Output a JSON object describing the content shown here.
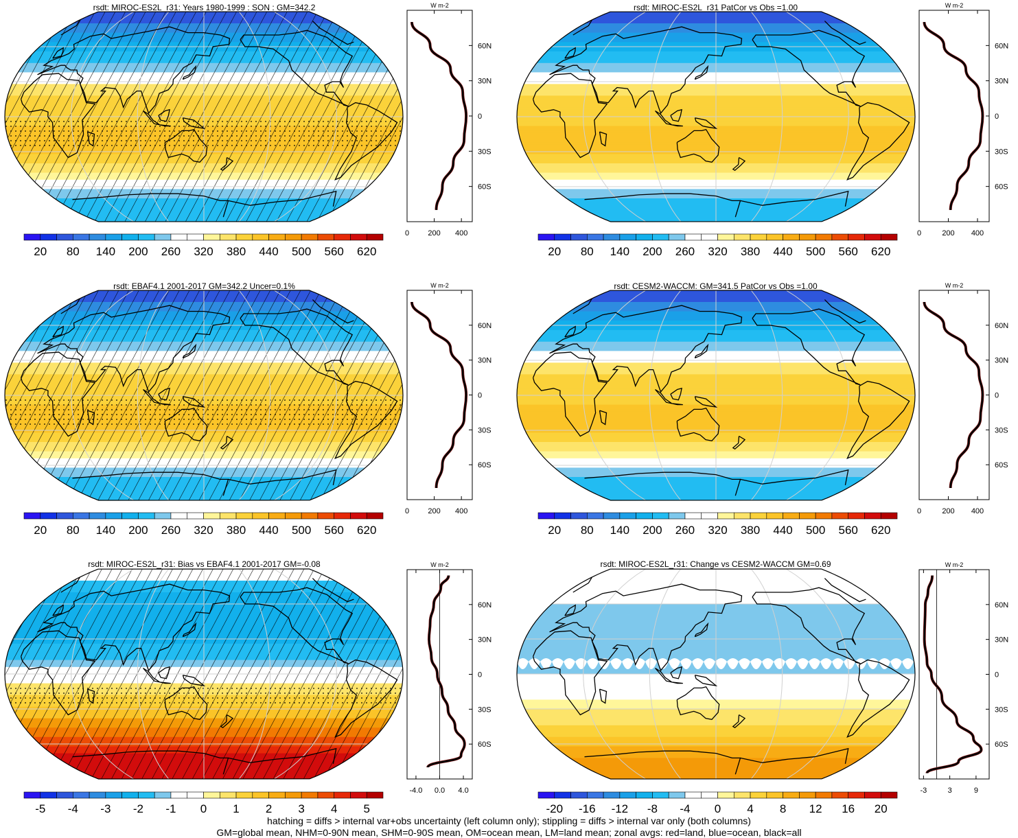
{
  "page": {
    "footer_line1": "hatching = diffs > internal var+obs uncertainty (left column only); stippling = diffs > internal var only (both columns)",
    "footer_line2": "GM=global mean, NHM=0-90N mean, SHM=0-90S mean, OM=ocean mean, LM=land mean; zonal avgs: red=land, blue=ocean, black=all"
  },
  "colors": {
    "scale": [
      "#2a14f2",
      "#1232e6",
      "#2e56dc",
      "#3a76e4",
      "#2e8ce0",
      "#1aa0e8",
      "#12b0ec",
      "#22bcf2",
      "#7ec8ec",
      "#ffffff",
      "#ffffff",
      "#fff69a",
      "#fde46a",
      "#fbd23a",
      "#fbc428",
      "#f8ac14",
      "#f49a08",
      "#f27a02",
      "#ec4c04",
      "#e62808",
      "#d20c0c",
      "#b40000"
    ],
    "land_outline": "#000000",
    "grid": "#d0d0d0",
    "zonal_line": "#000000"
  },
  "chart_data": [
    {
      "id": "p1",
      "type": "heatmap",
      "title": "rsdt: MIROC-ES2L_r31: Years 1980-1999 : SON : GM=342.2",
      "colorbar_labels": [
        "20",
        "80",
        "140",
        "200",
        "260",
        "320",
        "380",
        "440",
        "500",
        "560",
        "620"
      ],
      "zonal_unit": "W m-2",
      "zonal_ticks": [
        "0",
        "200",
        "400"
      ],
      "lat_ticks": [
        "60N",
        "30N",
        "0",
        "30S",
        "60S"
      ],
      "zonal_profile": {
        "lat": [
          80,
          60,
          40,
          20,
          0,
          -20,
          -40,
          -60,
          -80
        ],
        "value": [
          35,
          170,
          320,
          410,
          435,
          420,
          340,
          260,
          215
        ],
        "xlim": [
          0,
          480
        ]
      },
      "hatching": true,
      "stippling": "tropics"
    },
    {
      "id": "p2",
      "type": "heatmap",
      "title": "rsdt: MIROC-ES2L_r31 PatCor vs Obs =1.00",
      "colorbar_labels": [
        "20",
        "80",
        "140",
        "200",
        "260",
        "320",
        "380",
        "440",
        "500",
        "560",
        "620"
      ],
      "zonal_unit": "W m-2",
      "zonal_ticks": [
        "0",
        "200",
        "400"
      ],
      "lat_ticks": [
        "60N",
        "30N",
        "0",
        "30S",
        "60S"
      ],
      "zonal_profile": {
        "lat": [
          80,
          60,
          40,
          20,
          0,
          -20,
          -40,
          -60,
          -80
        ],
        "value": [
          35,
          170,
          320,
          410,
          435,
          420,
          340,
          260,
          215
        ],
        "xlim": [
          0,
          480
        ]
      },
      "hatching": false
    },
    {
      "id": "p3",
      "type": "heatmap",
      "title": "rsdt: EBAF4.1 2001-2017 GM=342.2 Uncer=0.1%",
      "colorbar_labels": [
        "20",
        "80",
        "140",
        "200",
        "260",
        "320",
        "380",
        "440",
        "500",
        "560",
        "620"
      ],
      "zonal_unit": "W m-2",
      "zonal_ticks": [
        "0",
        "200",
        "400"
      ],
      "lat_ticks": [
        "60N",
        "30N",
        "0",
        "30S",
        "60S"
      ],
      "zonal_profile": {
        "lat": [
          80,
          60,
          40,
          20,
          0,
          -20,
          -40,
          -60,
          -80
        ],
        "value": [
          35,
          170,
          320,
          410,
          435,
          420,
          340,
          260,
          215
        ],
        "xlim": [
          0,
          480
        ]
      },
      "hatching": true,
      "stippling": "tropics"
    },
    {
      "id": "p4",
      "type": "heatmap",
      "title": "rsdt: CESM2-WACCM: GM=341.5 PatCor vs Obs =1.00",
      "colorbar_labels": [
        "20",
        "80",
        "140",
        "200",
        "260",
        "320",
        "380",
        "440",
        "500",
        "560",
        "620"
      ],
      "zonal_unit": "W m-2",
      "zonal_ticks": [
        "0",
        "200",
        "400"
      ],
      "lat_ticks": [
        "60N",
        "30N",
        "0",
        "30S",
        "60S"
      ],
      "zonal_profile": {
        "lat": [
          80,
          60,
          40,
          20,
          0,
          -20,
          -40,
          -60,
          -80
        ],
        "value": [
          35,
          170,
          320,
          410,
          435,
          420,
          340,
          260,
          215
        ],
        "xlim": [
          0,
          480
        ]
      },
      "hatching": false
    },
    {
      "id": "p5",
      "type": "heatmap",
      "title": "rsdt: MIROC-ES2L_r31: Bias vs EBAF4.1 2001-2017  GM=-0.08",
      "colorbar_labels": [
        "-5",
        "-4",
        "-3",
        "-2",
        "-1",
        "0",
        "1",
        "2",
        "3",
        "4",
        "5"
      ],
      "zonal_unit": "W m-2",
      "zonal_ticks": [
        "-4.0",
        "0.0",
        "4.0"
      ],
      "lat_ticks": [
        "60N",
        "30N",
        "0",
        "30S",
        "60S"
      ],
      "zonal_profile": {
        "lat": [
          85,
          75,
          60,
          45,
          30,
          15,
          0,
          -15,
          -30,
          -45,
          -60,
          -70,
          -80
        ],
        "value": [
          1.5,
          0.2,
          -1.0,
          -1.6,
          -1.8,
          -1.4,
          -0.4,
          0.4,
          1.4,
          2.6,
          4.2,
          3.6,
          -2.0
        ],
        "xlim": [
          -5.5,
          5.5
        ],
        "zero_line": 0
      },
      "hatching": true,
      "stippling": "equator-band"
    },
    {
      "id": "p6",
      "type": "heatmap",
      "title": "rsdt: MIROC-ES2L_r31: Change vs CESM2-WACCM GM=0.69",
      "colorbar_labels": [
        "-20",
        "-16",
        "-12",
        "-8",
        "-4",
        "0",
        "4",
        "8",
        "12",
        "16",
        "20"
      ],
      "zonal_unit": "W m-2",
      "zonal_ticks": [
        "-3",
        "3",
        "9"
      ],
      "lat_ticks": [
        "60N",
        "30N",
        "0",
        "30S",
        "60S"
      ],
      "zonal_profile": {
        "lat": [
          85,
          70,
          60,
          30,
          10,
          0,
          -20,
          -40,
          -55,
          -65,
          -75,
          -85
        ],
        "value": [
          -1.0,
          -2.0,
          -2.6,
          -2.8,
          -2.2,
          -1.2,
          1.2,
          4.6,
          8.4,
          10.2,
          5.0,
          -2.2
        ],
        "xlim": [
          -4,
          12
        ],
        "zero_line": 0
      },
      "hatching": false
    }
  ]
}
